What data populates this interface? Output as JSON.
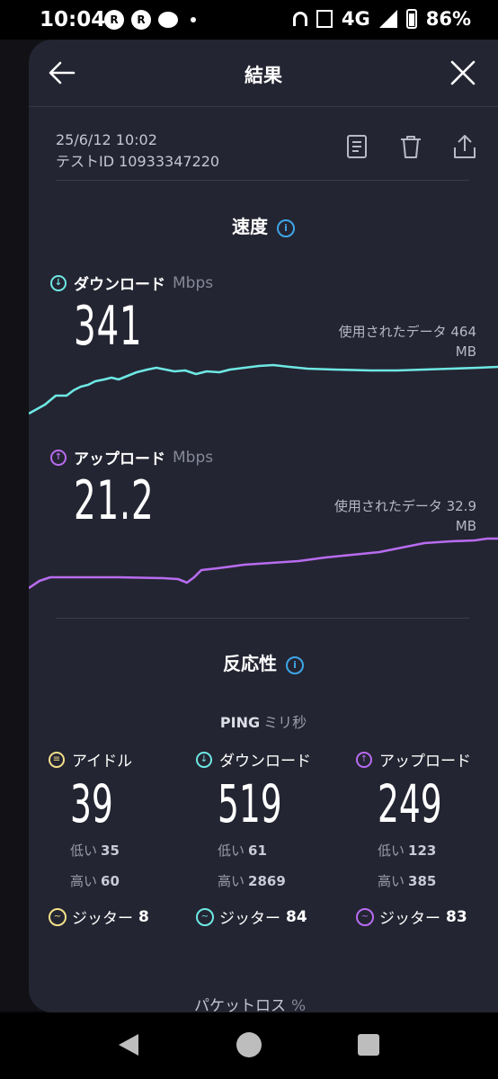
{
  "status_bar": {
    "time": "10:04",
    "network": "4G",
    "battery": "86%"
  },
  "header": {
    "title": "結果"
  },
  "meta": {
    "datetime": "25/6/12 10:02",
    "test_id": "テストID 10933347220"
  },
  "speed": {
    "title": "速度",
    "download": {
      "label": "ダウンロード",
      "unit": "Mbps",
      "value": "341",
      "used_label": "使用されたデータ 464",
      "used_unit": "MB"
    },
    "upload": {
      "label": "アップロード",
      "unit": "Mbps",
      "value": "21.2",
      "used_label": "使用されたデータ 32.9",
      "used_unit": "MB"
    }
  },
  "colors": {
    "download": "#6ee8e4",
    "upload": "#b86cf0",
    "idle": "#f3e08a",
    "info": "#3ea6e8"
  },
  "latency": {
    "title": "反応性",
    "ping_label": "PING",
    "ping_unit": "ミリ秒",
    "idle": {
      "label": "アイドル",
      "value": "39",
      "low_label": "低い",
      "low": "35",
      "high_label": "高い",
      "high": "60",
      "jitter_label": "ジッター",
      "jitter": "8"
    },
    "download": {
      "label": "ダウンロード",
      "value": "519",
      "low_label": "低い",
      "low": "61",
      "high_label": "高い",
      "high": "2869",
      "jitter_label": "ジッター",
      "jitter": "84"
    },
    "upload": {
      "label": "アップロード",
      "value": "249",
      "low_label": "低い",
      "low": "123",
      "high_label": "高い",
      "high": "385",
      "jitter_label": "ジッター",
      "jitter": "83"
    },
    "packet_loss_label": "パケットロス",
    "packet_loss_unit": "%"
  },
  "icons": {
    "back": "arrow-left-icon",
    "close": "close-icon",
    "report": "document-icon",
    "delete": "trash-icon",
    "share": "share-icon"
  }
}
